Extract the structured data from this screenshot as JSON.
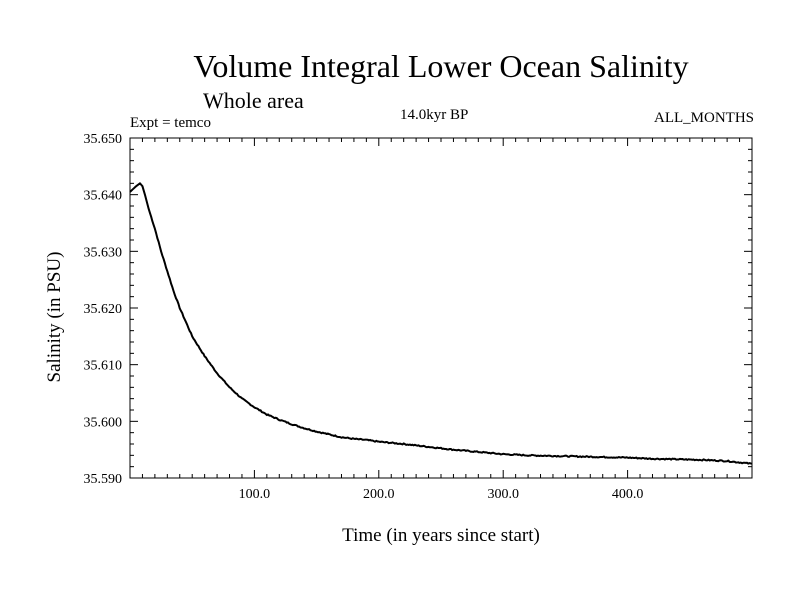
{
  "header": {
    "title": "Volume Integral Lower Ocean Salinity",
    "subtitle": "Whole area",
    "experiment": "Expt = temco",
    "period": "14.0kyr BP",
    "months": "ALL_MONTHS"
  },
  "chart_data": {
    "type": "line",
    "title": "Volume Integral Lower Ocean Salinity",
    "xlabel": "Time (in years since start)",
    "ylabel": "Salinity (in PSU)",
    "xlim": [
      0,
      500
    ],
    "ylim": [
      35.59,
      35.65
    ],
    "x_ticks": [
      100,
      200,
      300,
      400
    ],
    "x_tick_labels": [
      "100.0",
      "200.0",
      "300.0",
      "400.0"
    ],
    "y_ticks": [
      35.59,
      35.6,
      35.61,
      35.62,
      35.63,
      35.64,
      35.65
    ],
    "y_tick_labels": [
      "35.590",
      "35.600",
      "35.610",
      "35.620",
      "35.630",
      "35.640",
      "35.650"
    ],
    "grid": false,
    "series": [
      {
        "name": "Salinity",
        "x": [
          0,
          5,
          8,
          10,
          12,
          15,
          20,
          25,
          30,
          35,
          40,
          45,
          50,
          60,
          70,
          80,
          90,
          100,
          110,
          120,
          130,
          140,
          150,
          160,
          170,
          180,
          190,
          200,
          220,
          240,
          260,
          280,
          300,
          320,
          340,
          360,
          380,
          400,
          420,
          440,
          460,
          480,
          500
        ],
        "values": [
          35.6405,
          35.6415,
          35.642,
          35.6415,
          35.64,
          35.6375,
          35.634,
          35.63,
          35.6265,
          35.623,
          35.62,
          35.6175,
          35.615,
          35.6115,
          35.6085,
          35.606,
          35.604,
          35.6025,
          35.6012,
          35.6003,
          35.5995,
          35.5988,
          35.5982,
          35.5977,
          35.5972,
          35.5969,
          35.5967,
          35.5964,
          35.596,
          35.5955,
          35.595,
          35.5946,
          35.5942,
          35.594,
          35.5939,
          35.5938,
          35.5937,
          35.5936,
          35.5934,
          35.5933,
          35.5932,
          35.593,
          35.5925
        ]
      }
    ]
  }
}
